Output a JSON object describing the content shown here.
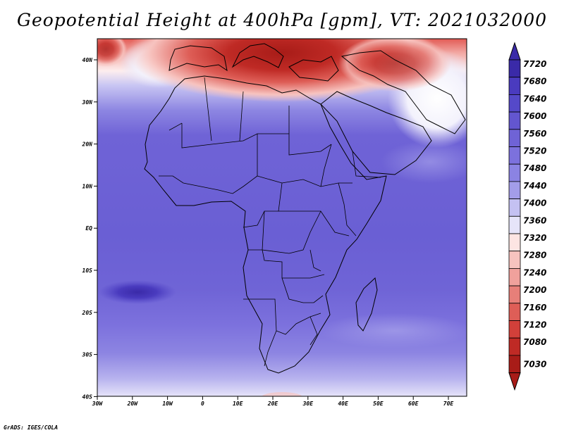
{
  "title": "Geopotential Height at 400hPa [gpm], VT: 2021032000",
  "credit": "GrADS: IGES/COLA",
  "map": {
    "lat_labels": [
      "40N",
      "30N",
      "20N",
      "10N",
      "EQ",
      "10S",
      "20S",
      "30S",
      "40S"
    ],
    "lon_labels": [
      "30W",
      "20W",
      "10W",
      "0",
      "10E",
      "20E",
      "30E",
      "40E",
      "50E",
      "60E",
      "70E"
    ]
  },
  "colorbar": {
    "levels": [
      "7720",
      "7680",
      "7640",
      "7600",
      "7560",
      "7520",
      "7480",
      "7440",
      "7400",
      "7360",
      "7320",
      "7280",
      "7240",
      "7200",
      "7160",
      "7120",
      "7080",
      "7030"
    ],
    "colors": [
      "#3a2aa8",
      "#4a3bbf",
      "#5549c9",
      "#6356cf",
      "#6f63d6",
      "#7c71dd",
      "#8b83e3",
      "#a39de9",
      "#c4c1f2",
      "#e6e4f9",
      "#fde5e3",
      "#f7c3bf",
      "#f0a19c",
      "#e77f79",
      "#de5e57",
      "#d2403a",
      "#bf2a25",
      "#a81c18"
    ]
  },
  "chart_data": {
    "type": "heatmap",
    "title": "Geopotential Height at 400hPa [gpm], VT: 2021032000",
    "variable": "Geopotential Height",
    "level": "400hPa",
    "units": "gpm",
    "valid_time": "2021032000",
    "lon_range": [
      "30W",
      "75E"
    ],
    "lat_range": [
      "40S",
      "45N"
    ],
    "scale_min": 7030,
    "scale_max": 7720,
    "pattern": "lowest heights (red) over Mediterranean and North Africa ~40N; transition (white) near 30-35N; high heights (blue) over tropics; max blue patch near 15S, 25W"
  }
}
